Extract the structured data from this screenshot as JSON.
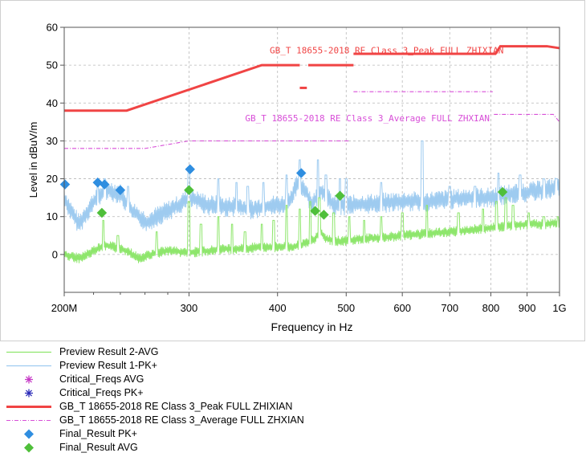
{
  "colors": {
    "avg_trace": "#8ee66c",
    "pk_trace": "#9ecbf0",
    "peak_limit": "#f04444",
    "avg_limit": "#d84fd8",
    "final_pk": "#2f8ee0",
    "final_avg": "#4fbf3a",
    "critical_avg": "#c63bc6",
    "critical_pk": "#2b2bb8",
    "grid": "#b8b8b8"
  },
  "chart_data": {
    "type": "line",
    "xlabel": "Frequency in Hz",
    "ylabel": "Level in dBuV/m",
    "x_scale": "log",
    "xlim_mhz": [
      200,
      1000
    ],
    "ylim": [
      -10,
      60
    ],
    "y_ticks": [
      0,
      10,
      20,
      30,
      40,
      50,
      60
    ],
    "x_ticks": [
      {
        "mhz": 200,
        "label": "200M"
      },
      {
        "mhz": 300,
        "label": "300"
      },
      {
        "mhz": 400,
        "label": "400"
      },
      {
        "mhz": 500,
        "label": "500"
      },
      {
        "mhz": 600,
        "label": "600"
      },
      {
        "mhz": 700,
        "label": "700"
      },
      {
        "mhz": 800,
        "label": "800"
      },
      {
        "mhz": 900,
        "label": "900"
      },
      {
        "mhz": 1000,
        "label": "1G"
      }
    ],
    "grid": true,
    "limit_annotations": [
      {
        "text": "GB_T 18655-2018 RE Class 3_Peak FULL ZHIXIAN",
        "x_mhz": 390,
        "y": 54,
        "series": "peak_limit"
      },
      {
        "text": "GB_T 18655-2018 RE Class 3_Average FULL ZHXIAN",
        "x_mhz": 360,
        "y": 36,
        "series": "avg_limit"
      }
    ],
    "series": [
      {
        "key": "peak_limit",
        "name": "GB_T 18655-2018 RE Class 3_Peak FULL ZHIXIAN",
        "style": "limit-solid",
        "segments": [
          [
            [
              200,
              38
            ],
            [
              245,
              38
            ],
            [
              380,
              50
            ],
            [
              430,
              50
            ]
          ],
          [
            [
              430,
              44
            ],
            [
              440,
              44
            ]
          ],
          [
            [
              442,
              50
            ],
            [
              512,
              50
            ]
          ],
          [
            [
              512,
              53
            ],
            [
              812,
              53
            ],
            [
              825,
              55
            ],
            [
              960,
              55
            ],
            [
              1000,
              54.5
            ]
          ]
        ]
      },
      {
        "key": "avg_limit",
        "name": "GB_T 18655-2018 RE Class 3_Average FULL ZHXIAN",
        "style": "limit-dash",
        "segments": [
          [
            [
              200,
              28
            ],
            [
              260,
              28
            ],
            [
              300,
              30
            ],
            [
              505,
              30
            ]
          ],
          [
            [
              512,
              43
            ],
            [
              805,
              43
            ]
          ],
          [
            [
              808,
              37
            ],
            [
              980,
              37
            ],
            [
              1000,
              35
            ]
          ]
        ]
      },
      {
        "key": "pk_trace",
        "name": "Preview Result 1-PK+",
        "style": "trace",
        "envelope": [
          [
            200,
            15
          ],
          [
            205,
            11
          ],
          [
            210,
            8
          ],
          [
            215,
            11
          ],
          [
            222,
            15
          ],
          [
            230,
            17
          ],
          [
            240,
            16
          ],
          [
            248,
            12
          ],
          [
            255,
            10
          ],
          [
            262,
            8.5
          ],
          [
            270,
            10
          ],
          [
            280,
            11.5
          ],
          [
            290,
            13
          ],
          [
            300,
            15
          ],
          [
            310,
            14
          ],
          [
            320,
            13
          ],
          [
            330,
            13
          ],
          [
            340,
            12.5
          ],
          [
            350,
            13
          ],
          [
            360,
            12
          ],
          [
            370,
            12
          ],
          [
            380,
            12.5
          ],
          [
            390,
            13
          ],
          [
            405,
            13
          ],
          [
            415,
            14
          ],
          [
            428,
            19
          ],
          [
            438,
            17
          ],
          [
            448,
            13
          ],
          [
            460,
            17
          ],
          [
            470,
            15
          ],
          [
            480,
            13
          ],
          [
            500,
            13
          ],
          [
            550,
            13.5
          ],
          [
            600,
            14
          ],
          [
            650,
            14
          ],
          [
            700,
            14.5
          ],
          [
            750,
            15
          ],
          [
            800,
            15
          ],
          [
            850,
            16
          ],
          [
            900,
            16.5
          ],
          [
            950,
            17
          ],
          [
            1000,
            18
          ]
        ],
        "spikes": [
          [
            223,
            19.5
          ],
          [
            228,
            20
          ],
          [
            246,
            18
          ],
          [
            300,
            22
          ],
          [
            330,
            20
          ],
          [
            350,
            19
          ],
          [
            363,
            18
          ],
          [
            382,
            19
          ],
          [
            412,
            21
          ],
          [
            430,
            25
          ],
          [
            456,
            25
          ],
          [
            468,
            21
          ],
          [
            490,
            20
          ],
          [
            500,
            20
          ],
          [
            560,
            19
          ],
          [
            640,
            30
          ],
          [
            700,
            18
          ],
          [
            760,
            18
          ],
          [
            820,
            21.5
          ],
          [
            880,
            21
          ],
          [
            950,
            20
          ],
          [
            990,
            20
          ]
        ]
      },
      {
        "key": "avg_trace",
        "name": "Preview Result 2-AVG",
        "style": "trace",
        "envelope": [
          [
            200,
            0
          ],
          [
            210,
            -1
          ],
          [
            220,
            1
          ],
          [
            228,
            2.5
          ],
          [
            235,
            2
          ],
          [
            245,
            1
          ],
          [
            255,
            -1
          ],
          [
            265,
            0
          ],
          [
            280,
            1
          ],
          [
            300,
            0.5
          ],
          [
            320,
            1
          ],
          [
            340,
            1.5
          ],
          [
            360,
            1.5
          ],
          [
            380,
            2
          ],
          [
            400,
            2
          ],
          [
            420,
            2
          ],
          [
            440,
            3
          ],
          [
            450,
            4
          ],
          [
            460,
            6
          ],
          [
            470,
            4
          ],
          [
            490,
            3.5
          ],
          [
            520,
            4
          ],
          [
            560,
            4.5
          ],
          [
            600,
            5
          ],
          [
            650,
            5.5
          ],
          [
            700,
            6
          ],
          [
            750,
            6.5
          ],
          [
            800,
            7
          ],
          [
            850,
            7.5
          ],
          [
            900,
            8
          ],
          [
            950,
            8
          ],
          [
            1000,
            8.5
          ]
        ],
        "spikes": [
          [
            227,
            9
          ],
          [
            238,
            5
          ],
          [
            270,
            6
          ],
          [
            300,
            14
          ],
          [
            312,
            8
          ],
          [
            330,
            10
          ],
          [
            345,
            8
          ],
          [
            360,
            6
          ],
          [
            380,
            8
          ],
          [
            395,
            9
          ],
          [
            412,
            13
          ],
          [
            430,
            12
          ],
          [
            445,
            14
          ],
          [
            458,
            15
          ],
          [
            480,
            11
          ],
          [
            505,
            10
          ],
          [
            530,
            9
          ],
          [
            560,
            10
          ],
          [
            600,
            11
          ],
          [
            650,
            13
          ],
          [
            720,
            11
          ],
          [
            780,
            12
          ],
          [
            815,
            14
          ],
          [
            840,
            15
          ],
          [
            860,
            13
          ],
          [
            905,
            11
          ],
          [
            950,
            10
          ],
          [
            995,
            10
          ]
        ]
      },
      {
        "key": "final_pk",
        "name": "Final_Result PK+",
        "style": "diamond",
        "points": [
          [
            200.5,
            18.5
          ],
          [
            223,
            19
          ],
          [
            228,
            18.5
          ],
          [
            240,
            17
          ],
          [
            301,
            22.5
          ],
          [
            432,
            21.5
          ]
        ]
      },
      {
        "key": "final_avg",
        "name": "Final_Result AVG",
        "style": "diamond",
        "points": [
          [
            226,
            11
          ],
          [
            300,
            17
          ],
          [
            452,
            11.5
          ],
          [
            465,
            10.5
          ],
          [
            490,
            15.5
          ],
          [
            831,
            16.5
          ]
        ]
      },
      {
        "key": "critical_avg",
        "name": "Critical_Freqs AVG",
        "style": "star",
        "points": []
      },
      {
        "key": "critical_pk",
        "name": "Critical_Freqs PK+",
        "style": "star",
        "points": []
      }
    ]
  },
  "legend": {
    "items": [
      {
        "label": "Preview Result 2-AVG",
        "symbol": "thin-line",
        "color_key": "avg_trace"
      },
      {
        "label": "Preview Result 1-PK+",
        "symbol": "thin-line",
        "color_key": "pk_trace"
      },
      {
        "label": "Critical_Freqs AVG",
        "symbol": "star",
        "color_key": "critical_avg"
      },
      {
        "label": "Critical_Freqs PK+",
        "symbol": "star",
        "color_key": "critical_pk"
      },
      {
        "label": "GB_T 18655-2018 RE Class 3_Peak FULL ZHIXIAN",
        "symbol": "thick-line",
        "color_key": "peak_limit"
      },
      {
        "label": "GB_T 18655-2018 RE Class 3_Average FULL ZHXIAN",
        "symbol": "dash-line",
        "color_key": "avg_limit"
      },
      {
        "label": "Final_Result PK+",
        "symbol": "diamond",
        "color_key": "final_pk"
      },
      {
        "label": "Final_Result AVG",
        "symbol": "diamond",
        "color_key": "final_avg"
      }
    ]
  }
}
